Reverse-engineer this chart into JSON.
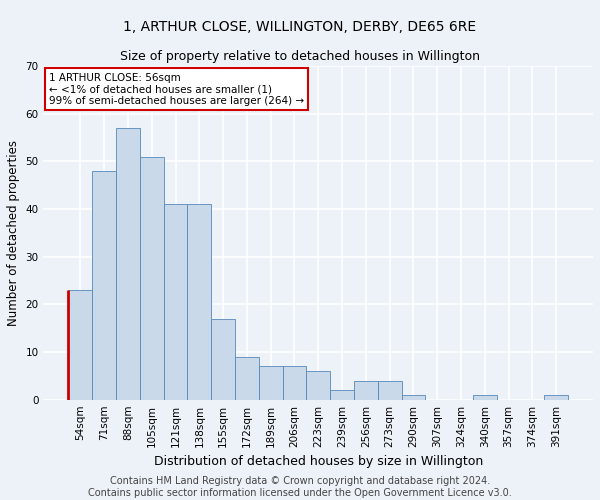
{
  "title": "1, ARTHUR CLOSE, WILLINGTON, DERBY, DE65 6RE",
  "subtitle": "Size of property relative to detached houses in Willington",
  "xlabel": "Distribution of detached houses by size in Willington",
  "ylabel": "Number of detached properties",
  "categories": [
    "54sqm",
    "71sqm",
    "88sqm",
    "105sqm",
    "121sqm",
    "138sqm",
    "155sqm",
    "172sqm",
    "189sqm",
    "206sqm",
    "223sqm",
    "239sqm",
    "256sqm",
    "273sqm",
    "290sqm",
    "307sqm",
    "324sqm",
    "340sqm",
    "357sqm",
    "374sqm",
    "391sqm"
  ],
  "values": [
    23,
    48,
    57,
    51,
    41,
    41,
    17,
    9,
    7,
    7,
    6,
    2,
    4,
    4,
    1,
    0,
    0,
    1,
    0,
    0,
    1
  ],
  "bar_color": "#c9d9ea",
  "bar_edge_color": "#5588bb",
  "highlight_color": "#cc0000",
  "ylim": [
    0,
    70
  ],
  "yticks": [
    0,
    10,
    20,
    30,
    40,
    50,
    60,
    70
  ],
  "annotation_text": "1 ARTHUR CLOSE: 56sqm\n← <1% of detached houses are smaller (1)\n99% of semi-detached houses are larger (264) →",
  "annotation_box_color": "#ffffff",
  "annotation_box_edge_color": "#cc0000",
  "footer_text": "Contains HM Land Registry data © Crown copyright and database right 2024.\nContains public sector information licensed under the Open Government Licence v3.0.",
  "background_color": "#edf2f8",
  "plot_background_color": "#edf2f8",
  "grid_color": "#ffffff",
  "title_fontsize": 10,
  "subtitle_fontsize": 9,
  "tick_fontsize": 7.5,
  "ylabel_fontsize": 8.5,
  "xlabel_fontsize": 9,
  "annotation_fontsize": 7.5,
  "footer_fontsize": 7
}
